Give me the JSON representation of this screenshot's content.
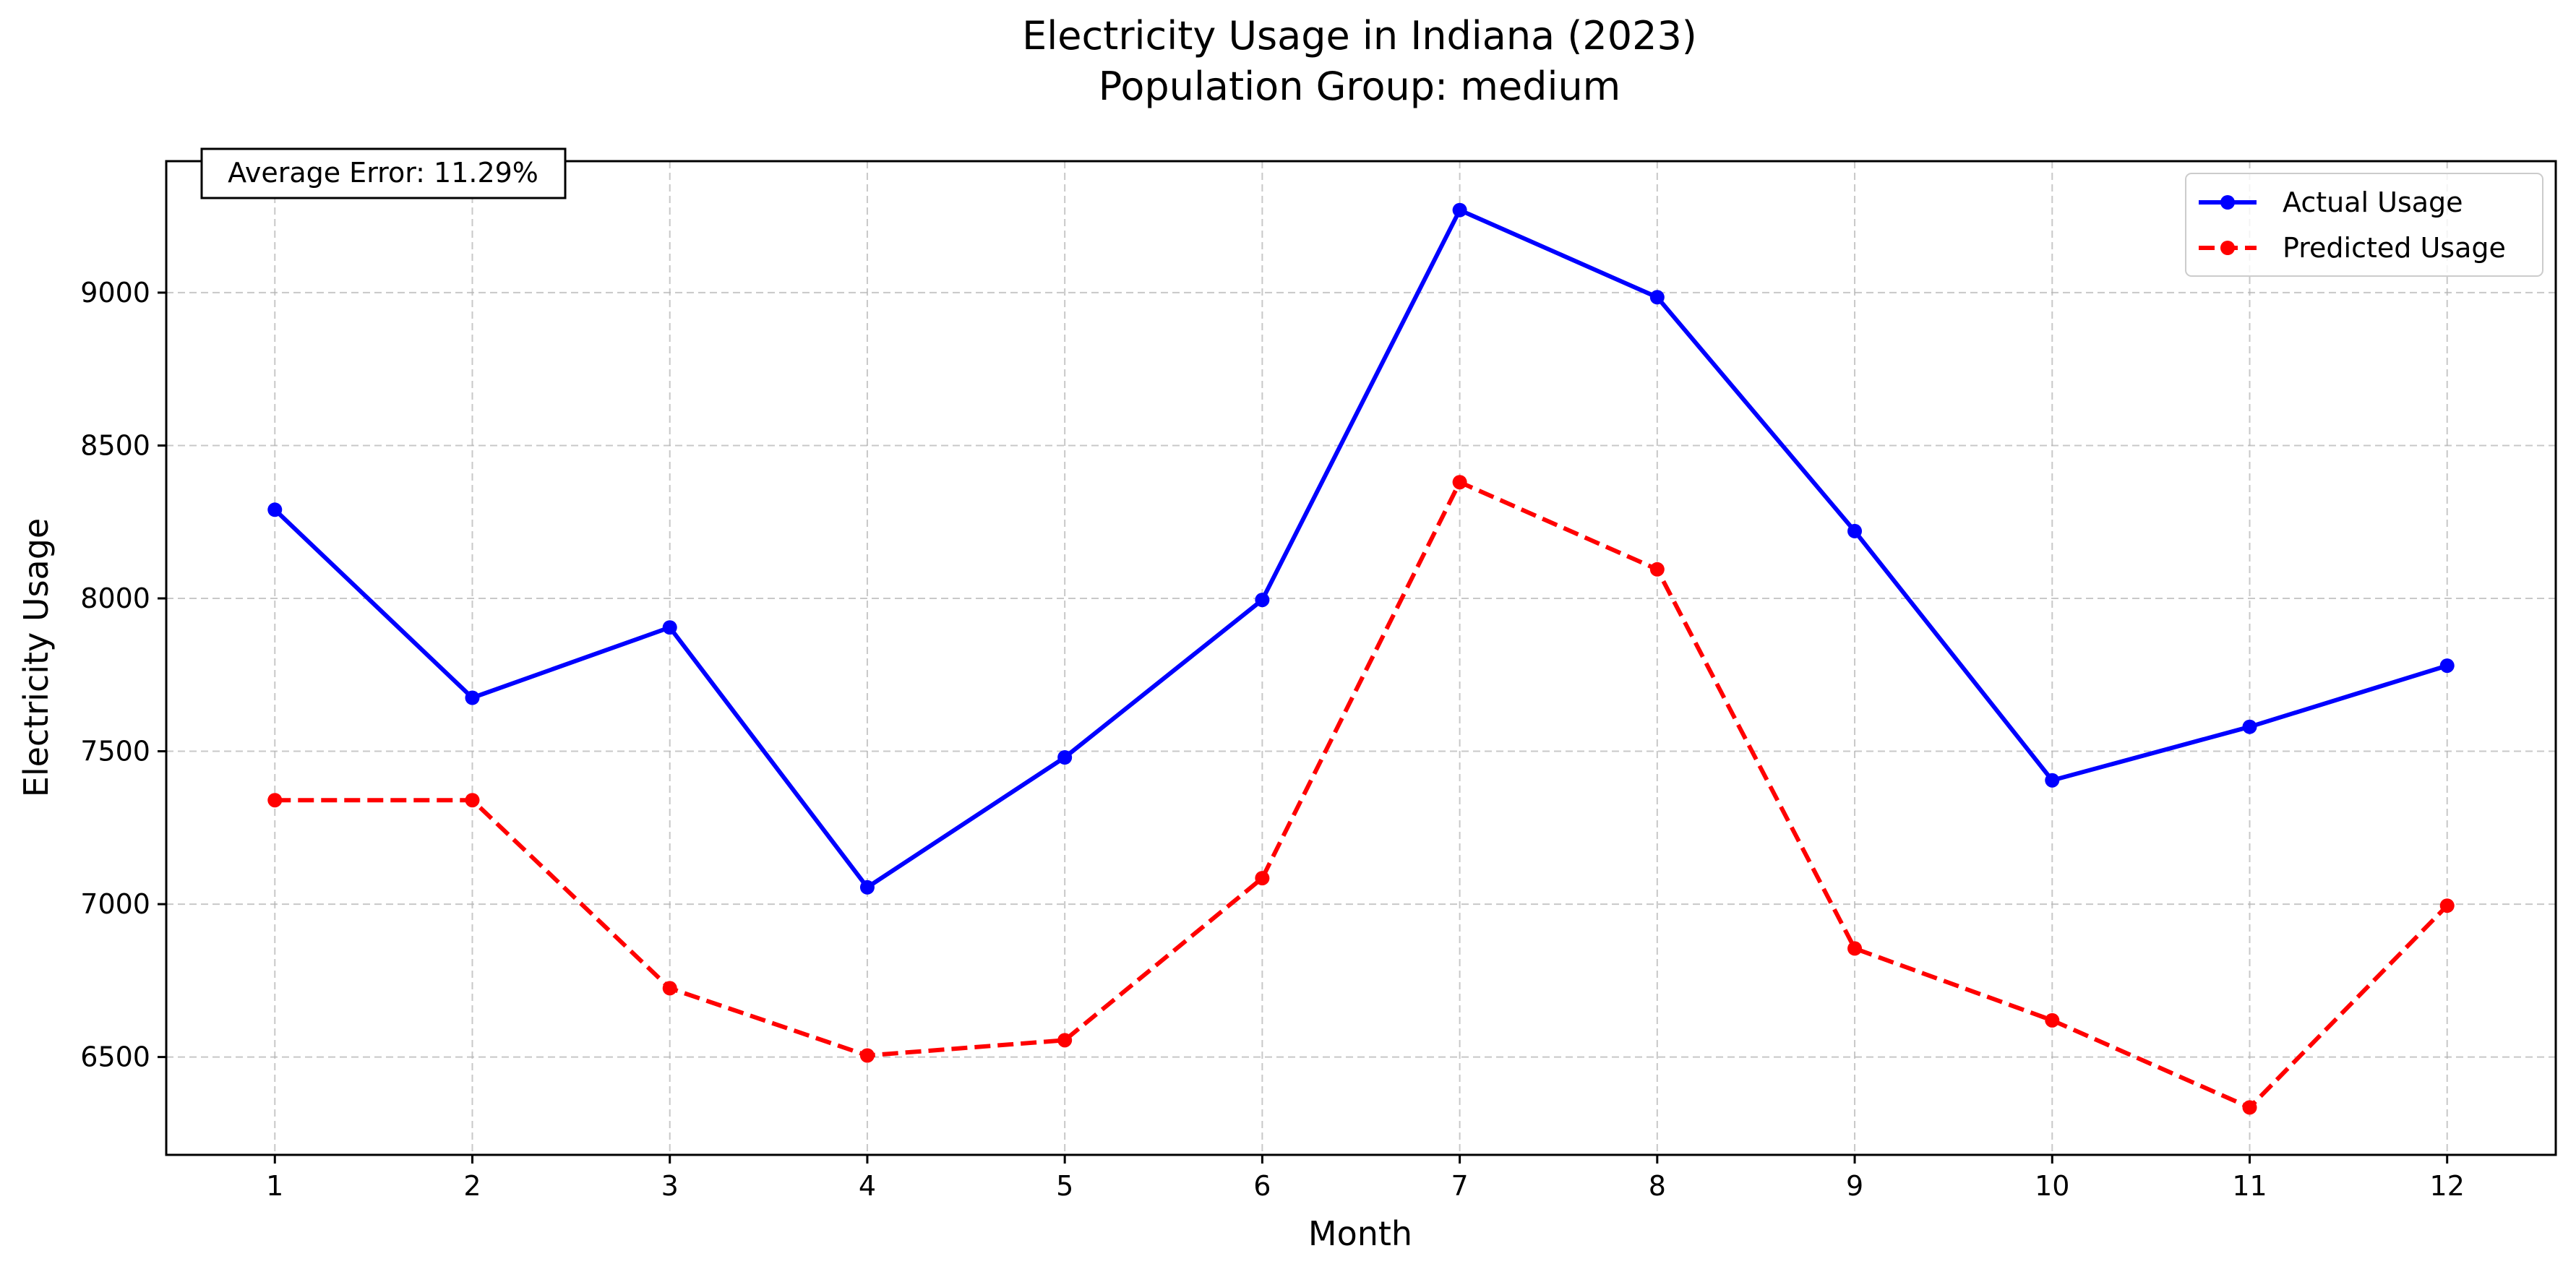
{
  "chart_data": {
    "type": "line",
    "title": "Electricity Usage in Indiana (2023)",
    "subtitle": "Population Group: medium",
    "xlabel": "Month",
    "ylabel": "Electricity Usage",
    "x": [
      1,
      2,
      3,
      4,
      5,
      6,
      7,
      8,
      9,
      10,
      11,
      12
    ],
    "xticks": [
      "1",
      "2",
      "3",
      "4",
      "5",
      "6",
      "7",
      "8",
      "9",
      "10",
      "11",
      "12"
    ],
    "xlim": [
      0.45,
      12.55
    ],
    "ylim": [
      6180,
      9430
    ],
    "yticks": [
      6500,
      7000,
      7500,
      8000,
      8500,
      9000
    ],
    "grid": true,
    "legend_position": "top-right",
    "annotation": "Average Error: 11.29%",
    "series": [
      {
        "name": "Actual Usage",
        "color": "#0000ff",
        "line_style": "solid",
        "marker": "circle",
        "values": [
          8290,
          7675,
          7905,
          7055,
          7480,
          7995,
          9270,
          8985,
          8220,
          7405,
          7580,
          7780
        ]
      },
      {
        "name": "Predicted Usage",
        "color": "#ff0000",
        "line_style": "dashed",
        "marker": "circle",
        "values": [
          7340,
          7340,
          6725,
          6505,
          6555,
          7085,
          8380,
          8095,
          6855,
          6620,
          6335,
          6995
        ]
      }
    ]
  }
}
